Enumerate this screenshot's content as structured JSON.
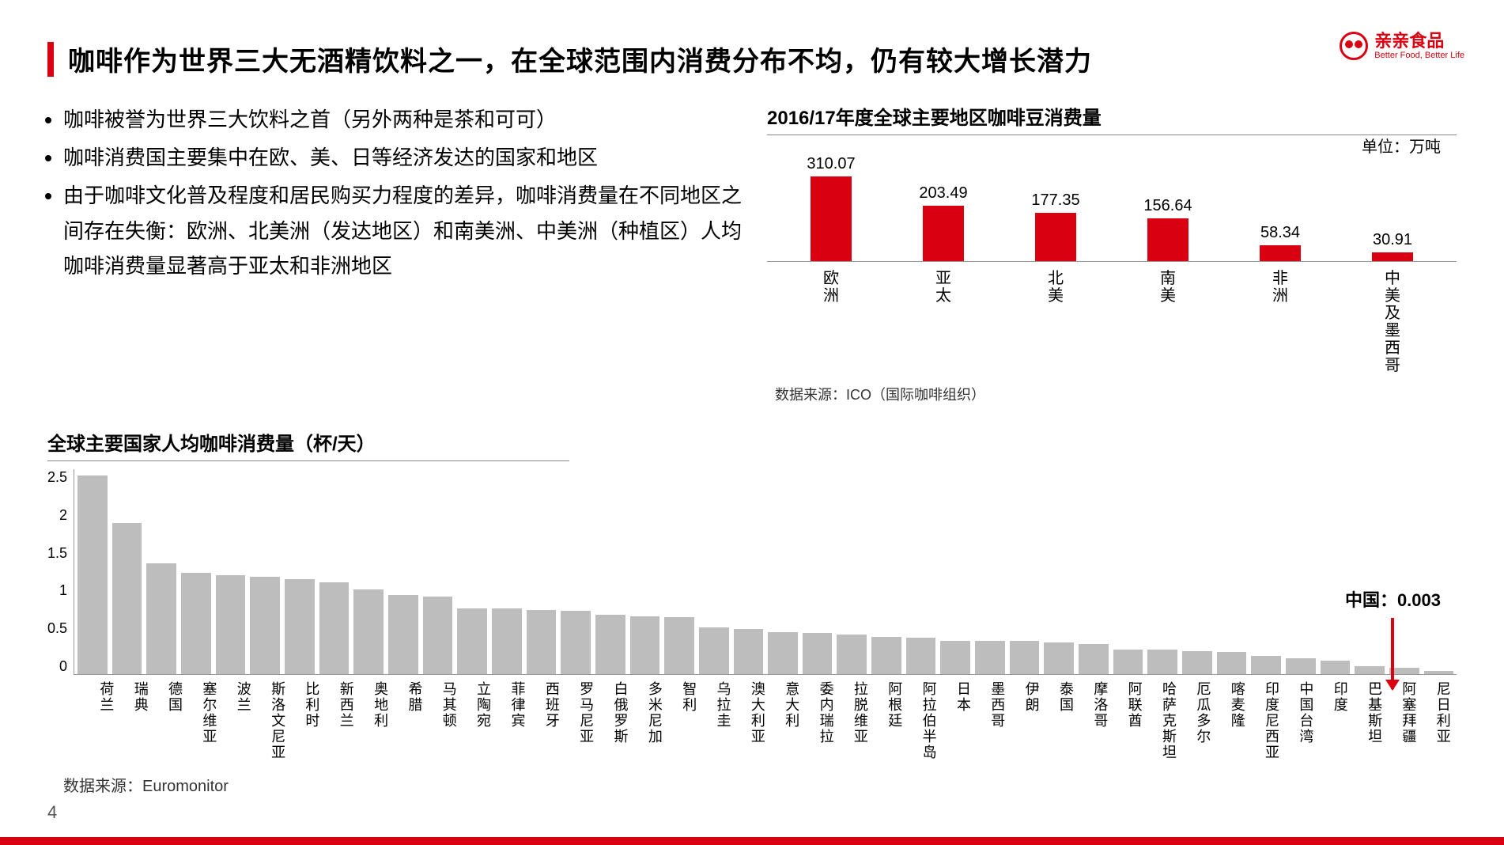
{
  "title": "咖啡作为世界三大无酒精饮料之一，在全球范围内消费分布不均，仍有较大增长潜力",
  "logo": {
    "cn": "亲亲食品",
    "en": "Better Food, Better Life"
  },
  "bullets": [
    "咖啡被誉为世界三大饮料之首（另外两种是茶和可可）",
    "咖啡消费国主要集中在欧、美、日等经济发达的国家和地区",
    "由于咖啡文化普及程度和居民购买力程度的差异，咖啡消费量在不同地区之间存在失衡：欧洲、北美洲（发达地区）和南美洲、中美洲（种植区）人均咖啡消费量显著高于亚太和非洲地区"
  ],
  "regionChart": {
    "title": "2016/17年度全球主要地区咖啡豆消费量",
    "unit": "单位：万吨",
    "type": "bar",
    "max": 320,
    "barColor": "#d90011",
    "labelFontSize": 20,
    "categories": [
      "欧洲",
      "亚太",
      "北美",
      "南美",
      "非洲",
      "中美及墨西哥"
    ],
    "values": [
      310.07,
      203.49,
      177.35,
      156.64,
      58.34,
      30.91
    ],
    "source": "数据来源：ICO（国际咖啡组织）"
  },
  "countryChart": {
    "title": "全球主要国家人均咖啡消费量（杯/天）",
    "type": "bar",
    "ymax": 2.5,
    "ytick_step": 0.5,
    "yticks": [
      "2.5",
      "2",
      "1.5",
      "1",
      "0.5",
      "0"
    ],
    "barColor": "#bdbdbd",
    "axisColor": "#999999",
    "labelFontSize": 18,
    "categories": [
      "荷兰",
      "瑞典",
      "德国",
      "塞尔维亚",
      "波兰",
      "斯洛文尼亚",
      "比利时",
      "新西兰",
      "奥地利",
      "希腊",
      "马其顿",
      "立陶宛",
      "菲律宾",
      "西班牙",
      "罗马尼亚",
      "白俄罗斯",
      "多米尼加",
      "智利",
      "乌拉圭",
      "澳大利亚",
      "意大利",
      "委内瑞拉",
      "拉脱维亚",
      "阿根廷",
      "阿拉伯半岛",
      "日本",
      "墨西哥",
      "伊朗",
      "泰国",
      "摩洛哥",
      "阿联酋",
      "哈萨克斯坦",
      "厄瓜多尔",
      "喀麦隆",
      "印度尼西亚",
      "中国台湾",
      "印度",
      "巴基斯坦",
      "阿塞拜疆",
      "尼日利亚"
    ],
    "values": [
      2.41,
      1.84,
      1.35,
      1.23,
      1.2,
      1.18,
      1.15,
      1.12,
      1.03,
      0.96,
      0.94,
      0.8,
      0.8,
      0.78,
      0.77,
      0.72,
      0.7,
      0.69,
      0.57,
      0.55,
      0.51,
      0.5,
      0.48,
      0.45,
      0.44,
      0.4,
      0.4,
      0.4,
      0.38,
      0.37,
      0.3,
      0.3,
      0.28,
      0.27,
      0.22,
      0.19,
      0.16,
      0.1,
      0.08,
      0.04
    ],
    "callout": {
      "label": "中国：0.003",
      "color": "#d90011"
    },
    "source": "数据来源：Euromonitor"
  },
  "pageNumber": "4"
}
